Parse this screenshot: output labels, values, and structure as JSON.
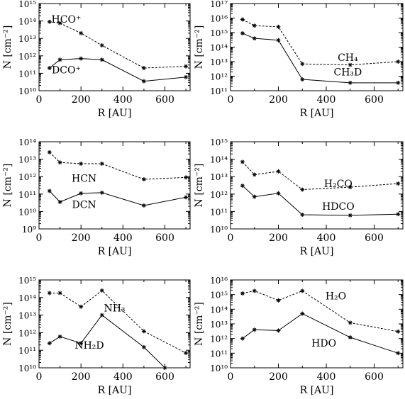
{
  "chart_data": [
    {
      "type": "line",
      "xlabel": "R [AU]",
      "ylabel": "N [cm⁻²]",
      "xlim": [
        0,
        720
      ],
      "ylim_log10": [
        10,
        15
      ],
      "x_ticks": [
        0,
        200,
        400,
        600
      ],
      "y_ticks_log10": [
        10,
        11,
        12,
        13,
        14,
        15
      ],
      "y_scale": "log",
      "series": [
        {
          "name": "HCO⁺",
          "style": "dashed",
          "x": [
            50,
            100,
            200,
            300,
            500,
            700
          ],
          "y": [
            90000000000000.0,
            75000000000000.0,
            20000000000000.0,
            4000000000000.0,
            200000000000.0,
            250000000000.0
          ]
        },
        {
          "name": "DCO⁺",
          "style": "solid",
          "x": [
            50,
            100,
            200,
            300,
            500,
            700
          ],
          "y": [
            200000000000.0,
            600000000000.0,
            700000000000.0,
            600000000000.0,
            35000000000.0,
            60000000000.0
          ]
        }
      ],
      "label_pos": [
        [
          130,
          14.1
        ],
        [
          130,
          11.2
        ]
      ]
    },
    {
      "type": "line",
      "xlabel": "R [AU]",
      "ylabel": "N [cm⁻²]",
      "xlim": [
        0,
        720
      ],
      "ylim_log10": [
        11,
        17
      ],
      "x_ticks": [
        0,
        200,
        400,
        600
      ],
      "y_ticks_log10": [
        11,
        12,
        13,
        14,
        15,
        16,
        17
      ],
      "y_scale": "log",
      "series": [
        {
          "name": "CH₄",
          "style": "dashed",
          "x": [
            50,
            100,
            200,
            300,
            500,
            700
          ],
          "y": [
            8000000000000000.0,
            3000000000000000.0,
            2500000000000000.0,
            7000000000000.0,
            6000000000000.0,
            10000000000000.0
          ]
        },
        {
          "name": "CH₃D",
          "style": "solid",
          "x": [
            50,
            100,
            200,
            300,
            500,
            700
          ],
          "y": [
            900000000000000.0,
            400000000000000.0,
            300000000000000.0,
            600000000000.0,
            350000000000.0,
            350000000000.0
          ]
        }
      ],
      "label_pos": [
        [
          490,
          13.3
        ],
        [
          490,
          12.3
        ]
      ]
    },
    {
      "type": "line",
      "xlabel": "R [AU]",
      "ylabel": "N [cm⁻²]",
      "xlim": [
        0,
        720
      ],
      "ylim_log10": [
        9,
        14
      ],
      "x_ticks": [
        0,
        200,
        400,
        600
      ],
      "y_ticks_log10": [
        9,
        10,
        11,
        12,
        13,
        14
      ],
      "y_scale": "log",
      "series": [
        {
          "name": "HCN",
          "style": "dashed",
          "x": [
            50,
            100,
            200,
            300,
            500,
            700
          ],
          "y": [
            25000000000000.0,
            6500000000000.0,
            5500000000000.0,
            5500000000000.0,
            700000000000.0,
            900000000000.0
          ]
        },
        {
          "name": "DCN",
          "style": "solid",
          "x": [
            50,
            100,
            200,
            300,
            500,
            700
          ],
          "y": [
            150000000000.0,
            35000000000.0,
            110000000000.0,
            120000000000.0,
            22000000000.0,
            65000000000.0
          ]
        }
      ],
      "label_pos": [
        [
          215,
          11.9
        ],
        [
          215,
          10.4
        ]
      ]
    },
    {
      "type": "line",
      "xlabel": "R [AU]",
      "ylabel": "N [cm⁻²]",
      "xlim": [
        0,
        720
      ],
      "ylim_log10": [
        10,
        15
      ],
      "x_ticks": [
        0,
        200,
        400,
        600
      ],
      "y_ticks_log10": [
        10,
        11,
        12,
        13,
        14,
        15
      ],
      "y_scale": "log",
      "series": [
        {
          "name": "H₂CO",
          "style": "dashed",
          "x": [
            50,
            100,
            200,
            300,
            500,
            700
          ],
          "y": [
            70000000000000.0,
            13000000000000.0,
            20000000000000.0,
            1800000000000.0,
            2500000000000.0,
            4000000000000.0
          ]
        },
        {
          "name": "HDCO",
          "style": "solid",
          "x": [
            50,
            100,
            200,
            300,
            500,
            700
          ],
          "y": [
            3000000000000.0,
            700000000000.0,
            1100000000000.0,
            65000000000.0,
            60000000000.0,
            70000000000.0
          ]
        }
      ],
      "label_pos": [
        [
          450,
          12.6
        ],
        [
          450,
          11.3
        ]
      ]
    },
    {
      "type": "line",
      "xlabel": "R [AU]",
      "ylabel": "N [cm⁻²]",
      "xlim": [
        0,
        720
      ],
      "ylim_log10": [
        10,
        15
      ],
      "x_ticks": [
        0,
        200,
        400,
        600
      ],
      "y_ticks_log10": [
        10,
        11,
        12,
        13,
        14,
        15
      ],
      "y_scale": "log",
      "series": [
        {
          "name": "NH₃",
          "style": "dashed",
          "x": [
            50,
            100,
            200,
            300,
            500,
            700
          ],
          "y": [
            180000000000000.0,
            180000000000000.0,
            30000000000000.0,
            250000000000000.0,
            1200000000000.0,
            70000000000.0
          ]
        },
        {
          "name": "NH₂D",
          "style": "solid",
          "x": [
            50,
            100,
            200,
            300,
            500,
            600
          ],
          "y": [
            250000000000.0,
            600000000000.0,
            250000000000.0,
            10000000000000.0,
            150000000000.0,
            10000000000.0
          ]
        }
      ],
      "label_pos": [
        [
          360,
          13.4
        ],
        [
          240,
          11.3
        ]
      ]
    },
    {
      "type": "line",
      "xlabel": "R [AU]",
      "ylabel": "N [cm⁻²]",
      "xlim": [
        0,
        720
      ],
      "ylim_log10": [
        10,
        16
      ],
      "x_ticks": [
        0,
        200,
        400,
        600
      ],
      "y_ticks_log10": [
        10,
        11,
        12,
        13,
        14,
        15,
        16
      ],
      "y_scale": "log",
      "series": [
        {
          "name": "H₂O",
          "style": "dashed",
          "x": [
            50,
            100,
            200,
            300,
            500,
            700
          ],
          "y": [
            1200000000000000.0,
            1800000000000000.0,
            400000000000000.0,
            1800000000000000.0,
            12000000000000.0,
            3000000000000.0
          ]
        },
        {
          "name": "HDO",
          "style": "solid",
          "x": [
            50,
            100,
            200,
            300,
            500,
            700
          ],
          "y": [
            1000000000000.0,
            4000000000000.0,
            3500000000000.0,
            50000000000000.0,
            1200000000000.0,
            100000000000.0
          ]
        }
      ],
      "label_pos": [
        [
          440,
          14.9
        ],
        [
          390,
          11.7
        ]
      ]
    }
  ]
}
